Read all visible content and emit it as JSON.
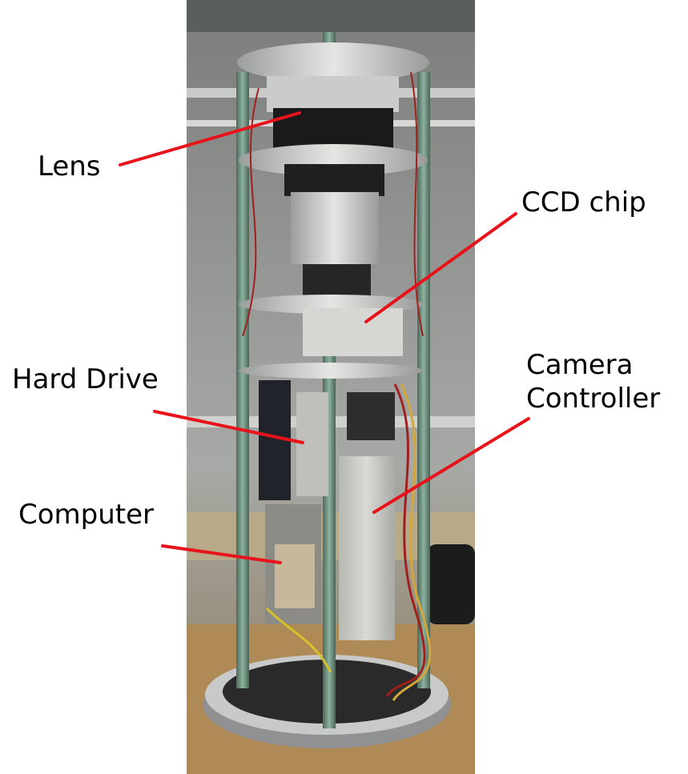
{
  "labels": {
    "lens": "Lens",
    "ccd_chip": "CCD chip",
    "hard_drive": "Hard Drive",
    "camera_controller_line1": "Camera",
    "camera_controller_line2": "Controller",
    "computer": "Computer"
  },
  "colors": {
    "callout_line": "#e8121a",
    "label_text": "#000000",
    "background": "#ffffff"
  }
}
